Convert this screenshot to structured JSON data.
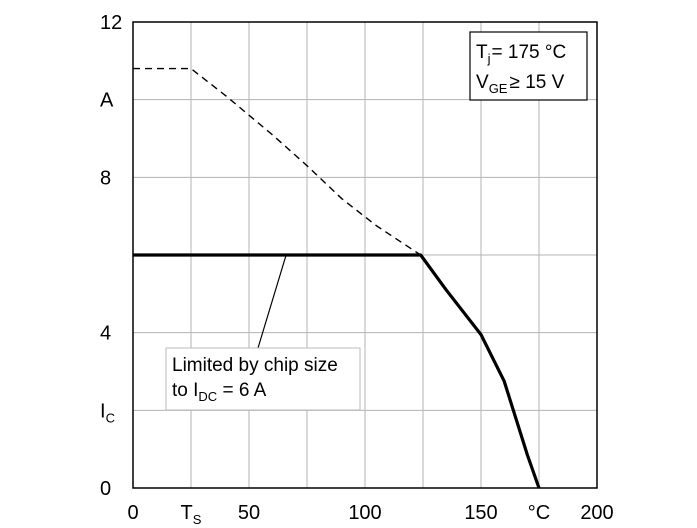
{
  "chart_data": {
    "type": "line",
    "xlim": [
      0,
      200
    ],
    "ylim": [
      0,
      12
    ],
    "grid": true,
    "x_ticks": [
      {
        "value": 0,
        "label": "0"
      },
      {
        "value": 25,
        "label": "T",
        "sub": "S"
      },
      {
        "value": 50,
        "label": "50"
      },
      {
        "value": 100,
        "label": "100"
      },
      {
        "value": 150,
        "label": "150"
      },
      {
        "value": 175,
        "label": "°C"
      },
      {
        "value": 200,
        "label": "200"
      }
    ],
    "x_grid": [
      0,
      25,
      50,
      75,
      100,
      125,
      150,
      175,
      200
    ],
    "y_ticks": [
      {
        "value": 0,
        "label": "0"
      },
      {
        "value": 2,
        "label": "I",
        "sub": "C"
      },
      {
        "value": 4,
        "label": "4"
      },
      {
        "value": 8,
        "label": "8"
      },
      {
        "value": 10,
        "label": "A"
      },
      {
        "value": 12,
        "label": "12"
      }
    ],
    "y_grid": [
      0,
      2,
      4,
      6,
      8,
      10,
      12
    ],
    "series": [
      {
        "style": "dashed",
        "x": [
          0,
          25,
          40,
          60,
          75,
          90,
          105,
          124
        ],
        "y": [
          10.8,
          10.8,
          10.1,
          9.1,
          8.3,
          7.45,
          6.75,
          6.0
        ]
      },
      {
        "style": "solid-thick",
        "x": [
          0,
          124,
          135,
          150,
          160,
          165,
          170,
          175
        ],
        "y": [
          6.0,
          6.0,
          5.1,
          3.95,
          2.75,
          1.8,
          0.85,
          0.0
        ]
      }
    ],
    "conditions": {
      "tj_label": "T",
      "tj_sub": "j",
      "tj_value": "= 175 °C",
      "vge_label": "V",
      "vge_sub": "GE",
      "vge_value": "≥ 15 V"
    },
    "annotation": {
      "line1": "Limited by chip size",
      "line2_prefix": "to I",
      "line2_sub": "DC",
      "line2_suffix": " = 6 A",
      "points_to": {
        "x": 66,
        "y": 6
      }
    }
  }
}
